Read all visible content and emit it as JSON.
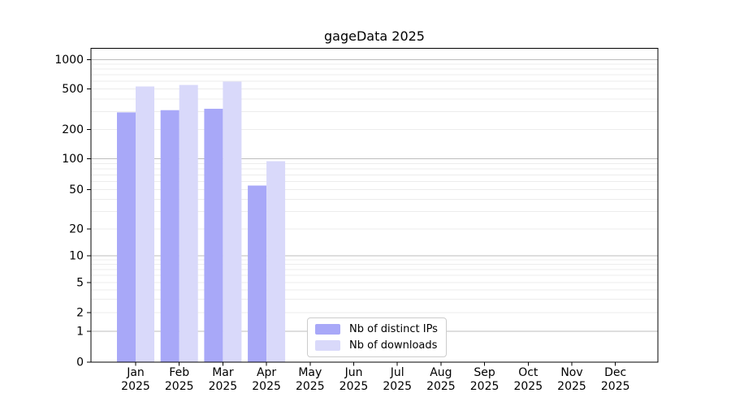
{
  "title": "gageData 2025",
  "chart_data": {
    "type": "bar",
    "title": "gageData 2025",
    "categories": [
      "Jan 2025",
      "Feb 2025",
      "Mar 2025",
      "Apr 2025",
      "May 2025",
      "Jun 2025",
      "Jul 2025",
      "Aug 2025",
      "Sep 2025",
      "Oct 2025",
      "Nov 2025",
      "Dec 2025"
    ],
    "category_month": [
      "Jan",
      "Feb",
      "Mar",
      "Apr",
      "May",
      "Jun",
      "Jul",
      "Aug",
      "Sep",
      "Oct",
      "Nov",
      "Dec"
    ],
    "category_year": "2025",
    "series": [
      {
        "name": "Nb of distinct IPs",
        "color": "#a8a8f8",
        "values": [
          295,
          310,
          320,
          55,
          0,
          0,
          0,
          0,
          0,
          0,
          0,
          0
        ]
      },
      {
        "name": "Nb of downloads",
        "color": "#d9d9fa",
        "values": [
          530,
          550,
          595,
          95,
          0,
          0,
          0,
          0,
          0,
          0,
          0,
          0
        ]
      }
    ],
    "xlabel": "",
    "ylabel": "",
    "yscale": "log-like (asinh), zero shown at axis base",
    "yticks": [
      0,
      1,
      2,
      5,
      10,
      20,
      50,
      100,
      200,
      500,
      1000
    ],
    "ylim": [
      0,
      1150
    ],
    "grid": true,
    "legend_position": "inside bottom, left of center",
    "colors": {
      "major_grid": "#bdbdbd",
      "minor_grid": "#ececec",
      "axis": "#000000",
      "text": "#000000",
      "background": "#ffffff"
    }
  }
}
